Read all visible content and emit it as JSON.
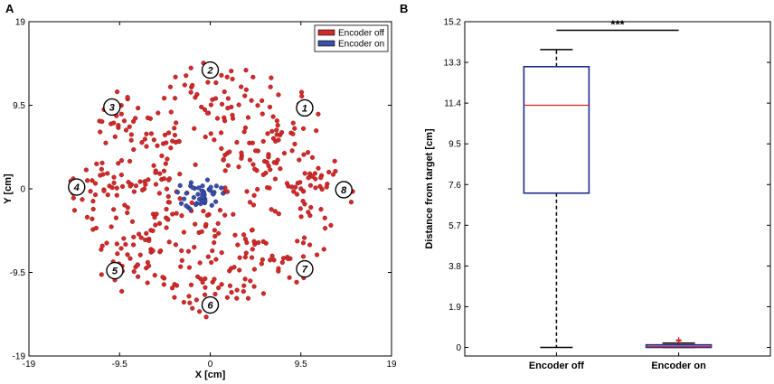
{
  "panels": {
    "a_letter": "A",
    "b_letter": "B"
  },
  "colors": {
    "encoder_off": "#d22a2a",
    "encoder_on": "#3a4fa8",
    "box_edge": "#1e2d8c",
    "median": "#e02020",
    "axis": "#000000"
  },
  "chart_data": [
    {
      "type": "scatter",
      "panel": "A",
      "xlabel": "X [cm]",
      "ylabel": "Y [cm]",
      "xlim": [
        -19,
        19
      ],
      "ylim": [
        -19,
        19
      ],
      "xticks": [
        -19,
        -9.5,
        0,
        9.5,
        19
      ],
      "yticks": [
        -19,
        -9.5,
        0,
        9.5,
        19
      ],
      "xtick_labels": [
        "-19",
        "-9.5",
        "0",
        "9.5",
        "19"
      ],
      "ytick_labels": [
        "-19",
        "-9.5",
        "0",
        "9.5",
        "19"
      ],
      "legend": {
        "location": "top-right",
        "entries": [
          "Encoder off",
          "Encoder on"
        ]
      },
      "targets": [
        {
          "label": "1",
          "x": 9.9,
          "y": 9.2
        },
        {
          "label": "2",
          "x": 0.0,
          "y": 13.5
        },
        {
          "label": "3",
          "x": -10.3,
          "y": 9.3
        },
        {
          "label": "4",
          "x": -14.0,
          "y": 0.2
        },
        {
          "label": "5",
          "x": -10.0,
          "y": -9.3
        },
        {
          "label": "6",
          "x": 0.0,
          "y": -13.2
        },
        {
          "label": "7",
          "x": 9.9,
          "y": -9.1
        },
        {
          "label": "8",
          "x": 14.0,
          "y": -0.1
        }
      ],
      "series": [
        {
          "name": "Encoder off",
          "center": [
            0,
            0
          ],
          "radius_min": 1.0,
          "radius_max": 13.5,
          "count": 520,
          "angle_gaps_deg": [
            [
              -45,
              -25
            ]
          ]
        },
        {
          "name": "Encoder on",
          "center": [
            -0.8,
            -0.6
          ],
          "spread": 0.9,
          "count": 45
        }
      ]
    },
    {
      "type": "box",
      "panel": "B",
      "ylabel": "Distance from target [cm]",
      "categories": [
        "Encoder off",
        "Encoder on"
      ],
      "ylim": [
        -0.4,
        15.2
      ],
      "yticks": [
        0,
        1.9,
        3.8,
        5.7,
        7.6,
        9.5,
        11.4,
        13.3,
        15.2
      ],
      "ytick_labels": [
        "0",
        "1.9",
        "3.8",
        "5.7",
        "7.6",
        "9.5",
        "11.4",
        "13.3",
        "15.2"
      ],
      "boxes": [
        {
          "name": "Encoder off",
          "min": 0.0,
          "q1": 7.2,
          "median": 11.3,
          "q3": 13.1,
          "max": 13.9,
          "outliers": []
        },
        {
          "name": "Encoder on",
          "min": 0.0,
          "q1": 0.0,
          "median": 0.05,
          "q3": 0.12,
          "max": 0.2,
          "outliers": [
            0.3,
            0.35
          ]
        }
      ],
      "significance": {
        "label": "***",
        "between": [
          "Encoder off",
          "Encoder on"
        ],
        "y": 14.8
      }
    }
  ]
}
